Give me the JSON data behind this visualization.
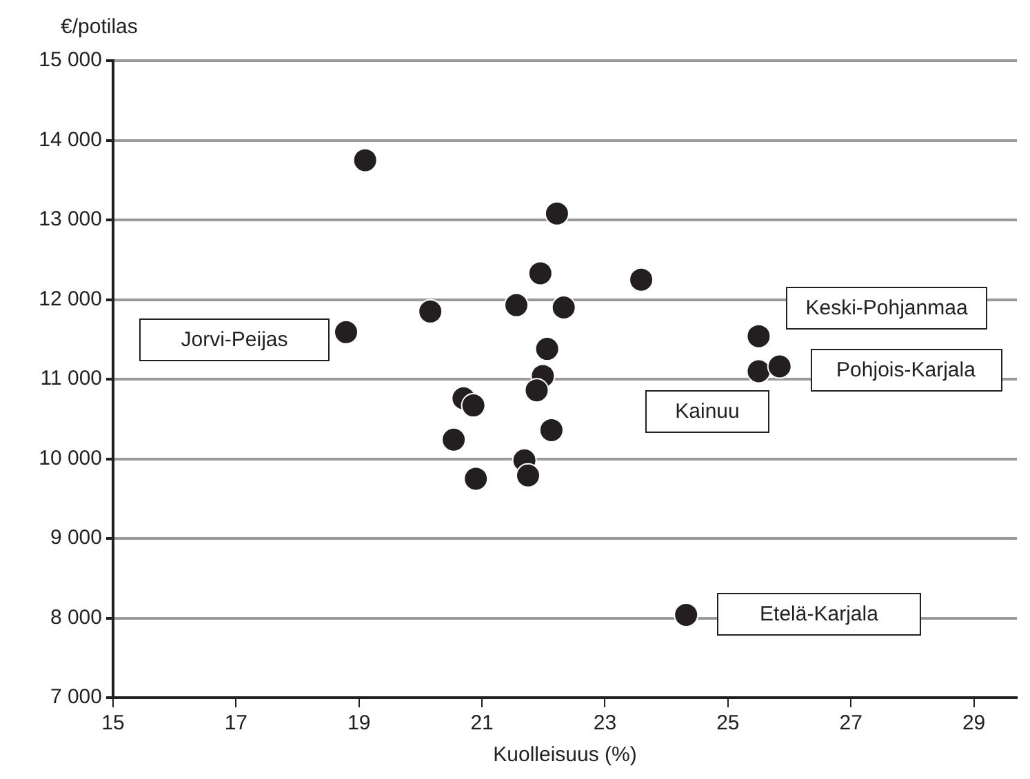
{
  "chart_data": {
    "type": "scatter",
    "xlabel": "Kuolleisuus (%)",
    "ylabel": "€/potilas",
    "x": [
      19.1,
      22.22,
      21.95,
      20.16,
      21.56,
      22.33,
      18.79,
      22.06,
      21.99,
      21.89,
      20.7,
      20.86,
      20.54,
      22.13,
      21.69,
      21.75,
      20.9,
      23.59,
      25.5,
      25.5,
      25.84,
      24.32
    ],
    "series": [
      {
        "color": "#231f20",
        "values": [
          13750,
          13080,
          12330,
          11850,
          11930,
          11900,
          11590,
          11380,
          11040,
          10860,
          10760,
          10670,
          10240,
          10360,
          9980,
          9790,
          9750,
          12250,
          11540,
          11100,
          11160,
          8040
        ]
      }
    ],
    "xlim": [
      15,
      29.7
    ],
    "xticks": [
      15,
      17,
      19,
      21,
      23,
      25,
      27,
      29
    ],
    "ylim": [
      7000,
      15000
    ],
    "yticks": [
      {
        "value": 7000,
        "label": "7 000"
      },
      {
        "value": 8000,
        "label": "8 000"
      },
      {
        "value": 9000,
        "label": "9 000"
      },
      {
        "value": 10000,
        "label": "10 000"
      },
      {
        "value": 11000,
        "label": "11 000"
      },
      {
        "value": 12000,
        "label": "12 000"
      },
      {
        "value": 13000,
        "label": "13 000"
      },
      {
        "value": 14000,
        "label": "14 000"
      },
      {
        "value": 15000,
        "label": "15 000"
      }
    ],
    "grid": "y",
    "marker": "circle",
    "legend": false,
    "annotations": [
      "Jorvi-Peijas",
      "Keski-Pohjanmaa",
      "Pohjois-Karjala",
      "Kainuu",
      "Etelä-Karjala"
    ]
  }
}
